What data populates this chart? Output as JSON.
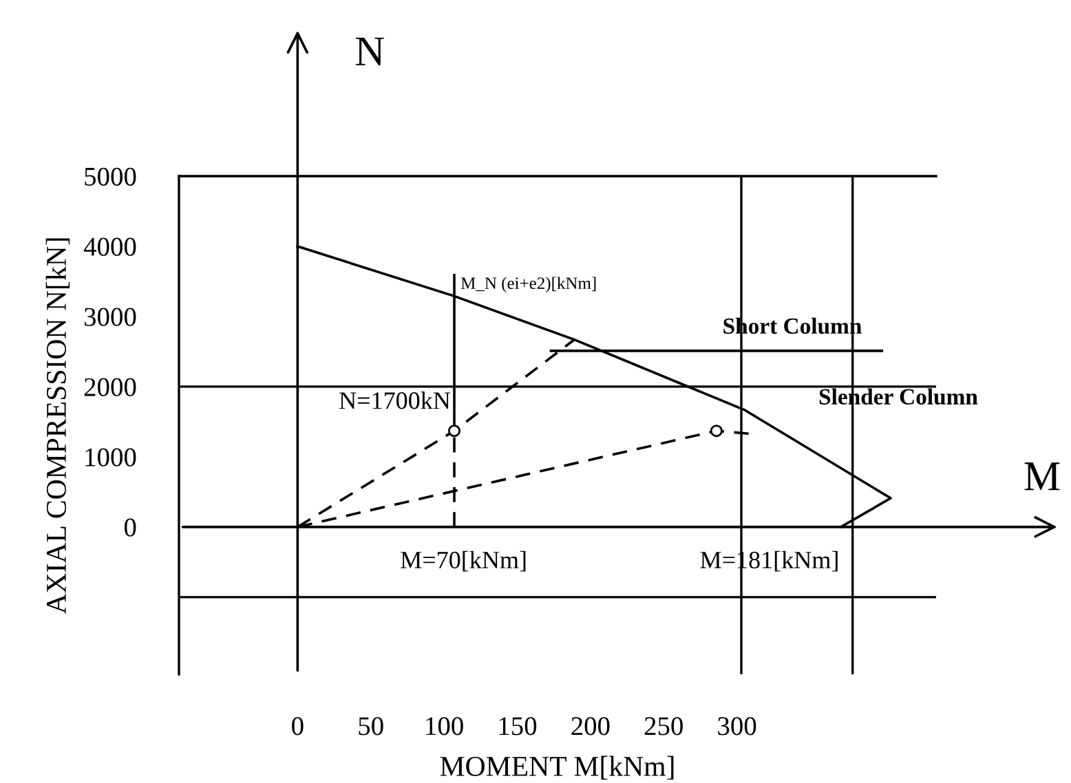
{
  "chart_data": {
    "type": "line",
    "xlabel": "MOMENT M[kNm]",
    "ylabel": "AXIAL COMPRESSION N[kN]",
    "xlim": [
      -81,
      436
    ],
    "ylim": [
      -2100,
      5000
    ],
    "xticks": [
      0,
      50,
      100,
      150,
      200,
      250,
      300
    ],
    "yticks": [
      0,
      1000,
      2000,
      3000,
      4000,
      5000
    ],
    "legend": false,
    "grid": false,
    "series": [
      {
        "color": "#000000",
        "line_style": "solid",
        "x": [
          0,
          107,
          189,
          305,
          405,
          371
        ],
        "values": [
          4000,
          3290,
          2670,
          1670,
          410,
          0
        ]
      },
      {
        "color": "#000000",
        "line_style": "dashed",
        "x": [
          0,
          107,
          189
        ],
        "values": [
          0,
          1370,
          2670
        ]
      },
      {
        "color": "#000000",
        "line_style": "dashed",
        "x": [
          0,
          286,
          308
        ],
        "values": [
          0,
          1370,
          1330
        ]
      },
      {
        "color": "#000000",
        "line_style": "solid",
        "x": [
          107,
          107
        ],
        "values": [
          1370,
          3590
        ]
      },
      {
        "color": "#000000",
        "line_style": "dashed",
        "x": [
          107,
          107
        ],
        "values": [
          0,
          1370
        ]
      },
      {
        "color": "#000000",
        "line_style": "solid",
        "x": [
          173,
          399
        ],
        "values": [
          2510,
          2510
        ]
      },
      {
        "type": "scatter",
        "color": "#000000",
        "marker": "circle",
        "x": [
          107,
          286
        ],
        "values": [
          1370,
          1370
        ]
      }
    ],
    "ref_lines": [
      {
        "axis": "y",
        "value": 2000
      },
      {
        "axis": "y",
        "value": -1000
      },
      {
        "axis": "x",
        "value": 303
      },
      {
        "axis": "x",
        "value": 379
      }
    ],
    "annotations": [
      "N",
      "M",
      "M_N (ei+e2)[kNm]",
      "Short Column",
      "Slender Column",
      "N=1700kN",
      "M=70[kNm]",
      "M=181[kNm]"
    ]
  }
}
